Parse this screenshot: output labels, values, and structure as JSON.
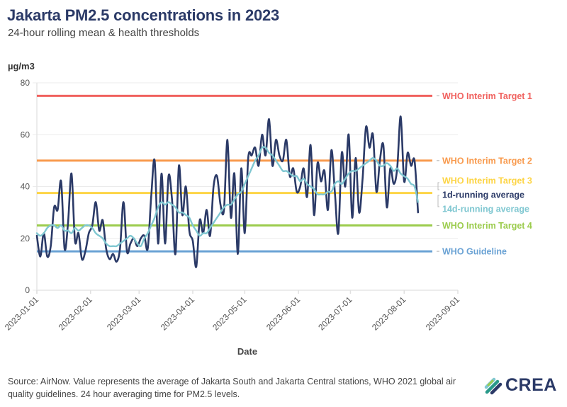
{
  "header": {
    "title": "Jakarta PM2.5 concentrations in 2023",
    "subtitle": "24-hour rolling mean & health thresholds",
    "unit": "µg/m3"
  },
  "footer": {
    "source": "Source: AirNow. Value represents the average of Jakarta South and Jakarta Central stations, WHO 2021 global air quality guidelines. 24 hour averaging time for PM2.5 levels.",
    "logo_text": "CREA"
  },
  "chart_data": {
    "type": "line",
    "title": "Jakarta PM2.5 concentrations in 2023",
    "subtitle": "24-hour rolling mean & health thresholds",
    "xlabel": "Date",
    "ylabel": "µg/m3",
    "ylim": [
      0,
      80
    ],
    "yticks": [
      0,
      20,
      40,
      60,
      80
    ],
    "xlim": [
      "2023-01-01",
      "2023-09-01"
    ],
    "xticks": [
      "2023-01-01",
      "2023-02-01",
      "2023-03-01",
      "2023-04-01",
      "2023-05-01",
      "2023-06-01",
      "2023-07-01",
      "2023-08-01",
      "2023-09-01"
    ],
    "grid": true,
    "reference_lines": [
      {
        "name": "WHO Interim Target 1",
        "value": 75,
        "color": "#f0625f"
      },
      {
        "name": "WHO Interim Target 2",
        "value": 50,
        "color": "#f89a4d"
      },
      {
        "name": "WHO Interim Target 3",
        "value": 37.5,
        "color": "#fdd444"
      },
      {
        "name": "WHO Interim Target 4",
        "value": 25,
        "color": "#9ccc4e"
      },
      {
        "name": "WHO Guideline",
        "value": 15,
        "color": "#6aa2d4"
      }
    ],
    "series": [
      {
        "name": "1d-running average",
        "color": "#2b3a67",
        "start": "2023-01-01",
        "step_days": 2,
        "values": [
          21,
          13,
          22,
          13,
          17,
          32,
          31,
          42,
          16,
          26,
          45,
          19,
          22,
          12,
          15,
          22,
          25,
          34,
          23,
          27,
          16,
          12,
          14,
          11,
          16,
          34,
          15,
          18,
          20,
          17,
          20,
          21,
          16,
          36,
          50,
          18,
          45,
          18,
          44,
          35,
          14,
          48,
          29,
          40,
          23,
          19,
          9,
          27,
          22,
          31,
          21,
          40,
          44,
          33,
          31,
          58,
          28,
          45,
          14,
          47,
          22,
          51,
          52,
          55,
          48,
          60,
          52,
          66,
          48,
          58,
          52,
          50,
          58,
          44,
          47,
          38,
          40,
          47,
          36,
          56,
          29,
          49,
          42,
          46,
          31,
          54,
          38,
          22,
          53,
          40,
          60,
          28,
          51,
          30,
          43,
          63,
          55,
          60,
          38,
          50,
          56,
          32,
          47,
          41,
          47,
          67,
          42,
          53,
          48,
          50,
          30
        ],
        "smooth": true
      },
      {
        "name": "14d-running average",
        "color": "#7fc7d1",
        "start": "2023-01-01",
        "step_days": 2,
        "values": [
          22,
          21,
          22,
          24,
          25,
          25,
          24,
          25,
          23,
          23,
          22,
          24,
          23,
          24,
          25,
          25,
          24,
          22,
          21,
          20,
          18,
          17,
          17,
          17,
          18,
          19,
          20,
          21,
          20,
          18,
          17,
          20,
          22,
          25,
          28,
          32,
          34,
          33,
          34,
          33,
          32,
          30,
          30,
          29,
          28,
          25,
          23,
          21,
          22,
          22,
          24,
          26,
          28,
          30,
          32,
          33,
          33,
          35,
          37,
          38,
          41,
          44,
          47,
          50,
          52,
          55,
          55,
          53,
          52,
          50,
          48,
          46,
          46,
          45,
          44,
          44,
          42,
          43,
          41,
          40,
          39,
          37,
          37,
          37,
          38,
          38,
          41,
          42,
          41,
          43,
          45,
          46,
          46,
          47,
          48,
          49,
          50,
          51,
          50,
          48,
          48,
          49,
          48,
          46,
          47,
          45,
          44,
          43,
          41,
          40,
          34
        ],
        "smooth": true
      }
    ],
    "legend": "right"
  }
}
